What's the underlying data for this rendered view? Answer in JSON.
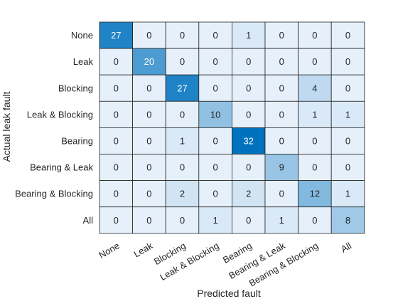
{
  "chart_data": {
    "type": "heatmap",
    "title": "",
    "xlabel": "Predicted fault",
    "ylabel": "Actual leak fault",
    "row_labels": [
      "None",
      "Leak",
      "Blocking",
      "Leak & Blocking",
      "Bearing",
      "Bearing & Leak",
      "Bearing & Blocking",
      "All"
    ],
    "col_labels": [
      "None",
      "Leak",
      "Blocking",
      "Leak & Blocking",
      "Bearing",
      "Bearing & Leak",
      "Bearing & Blocking",
      "All"
    ],
    "values": [
      [
        27,
        0,
        0,
        0,
        1,
        0,
        0,
        0
      ],
      [
        0,
        20,
        0,
        0,
        0,
        0,
        0,
        0
      ],
      [
        0,
        0,
        27,
        0,
        0,
        0,
        4,
        0
      ],
      [
        0,
        0,
        0,
        10,
        0,
        0,
        1,
        1
      ],
      [
        0,
        0,
        1,
        0,
        32,
        0,
        0,
        0
      ],
      [
        0,
        0,
        0,
        0,
        0,
        9,
        0,
        0
      ],
      [
        0,
        0,
        2,
        0,
        2,
        0,
        12,
        1
      ],
      [
        0,
        0,
        0,
        1,
        0,
        1,
        0,
        8
      ]
    ],
    "colors": {
      "low": "#e6f0fa",
      "high": "#0072bd",
      "text_dark": "#262626",
      "text_light": "#ffffff",
      "grid": "#262626"
    }
  }
}
